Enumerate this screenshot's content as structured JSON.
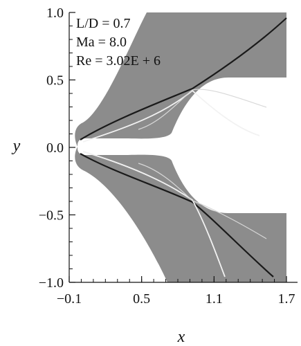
{
  "chart_data": {
    "type": "heatmap",
    "xlabel": "x",
    "ylabel": "y",
    "xlim": [
      -0.1,
      1.7
    ],
    "ylim": [
      -1.0,
      1.0
    ],
    "x_ticks": [
      -0.1,
      0.5,
      1.1,
      1.7
    ],
    "x_tick_labels": [
      "−0.1",
      "0.5",
      "1.1",
      "1.7"
    ],
    "y_ticks": [
      1.0,
      0.5,
      0.0,
      -0.5,
      -1.0
    ],
    "y_tick_labels": [
      "1.0",
      "0.5",
      "0.0",
      "−0.5",
      "−1.0"
    ],
    "annotations": [
      "L/D = 0.7",
      "Ma = 8.0",
      "Re = 3.02E + 6"
    ],
    "colors": {
      "flow": "#8c8c8c",
      "shock_dark": "#1a1a1a",
      "shock_light": "#f2f2f2"
    }
  }
}
